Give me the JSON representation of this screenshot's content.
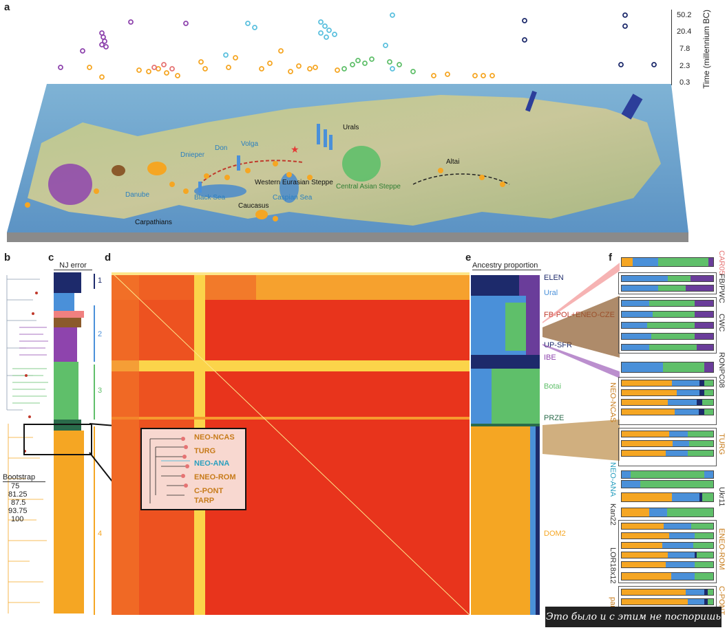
{
  "panel_labels": {
    "a": "a",
    "b": "b",
    "c": "c",
    "d": "d",
    "e": "e",
    "f": "f"
  },
  "time_axis": {
    "label": "Time (millennium BC)",
    "ticks": [
      "50.2",
      "20.4",
      "7.8",
      "2.3",
      "0.3"
    ]
  },
  "map_labels": {
    "urals": "Urals",
    "dnieper": "Dnieper",
    "don": "Don",
    "volga": "Volga",
    "altai": "Altai",
    "danube": "Danube",
    "black_sea": "Black Sea",
    "caspian_sea": "Caspian Sea",
    "caucasus": "Caucasus",
    "carpathians": "Carpathians",
    "western_steppe": "Western Eurasian Steppe",
    "central_steppe": "Central Asian Steppe"
  },
  "panel_c": {
    "title": "NJ error"
  },
  "panel_e": {
    "title": "Ancestry proportion"
  },
  "bootstrap": {
    "title": "Bootstrap",
    "values": [
      "75",
      "81.25",
      "87.5",
      "93.75",
      "100"
    ]
  },
  "clusters": [
    "1",
    "2",
    "3",
    "4"
  ],
  "inset_labels": [
    "NEO-NCAS",
    "TURG",
    "NEO-ANA",
    "ENEO-ROM",
    "C-PONT",
    "TARP"
  ],
  "panel_e_labels": [
    "ELEN",
    "Ural",
    "FB-POL+ENEO-CZE",
    "UP-SFR",
    "IBE",
    "Botai",
    "PRZE",
    "DOM2"
  ],
  "panel_f_labels": [
    "CAR05",
    "FB/PWC",
    "CWC",
    "RONPC08",
    "NEO-NCAS",
    "TURG",
    "NEO-ANA",
    "Ukr11",
    "Kan22",
    "ENEO-ROM",
    "LOR18x12",
    "C-PONT",
    "pan"
  ],
  "colors": {
    "orange": "#f5a623",
    "blue": "#4a90d9",
    "green": "#5fbf6a",
    "purple": "#6a3d9a",
    "navy": "#1d2a6b",
    "brown": "#8b5a2b",
    "teal": "#2a8c7a",
    "heat_bg": "#e8341c"
  },
  "watermark": "Это было и с этим не поспоришь"
}
